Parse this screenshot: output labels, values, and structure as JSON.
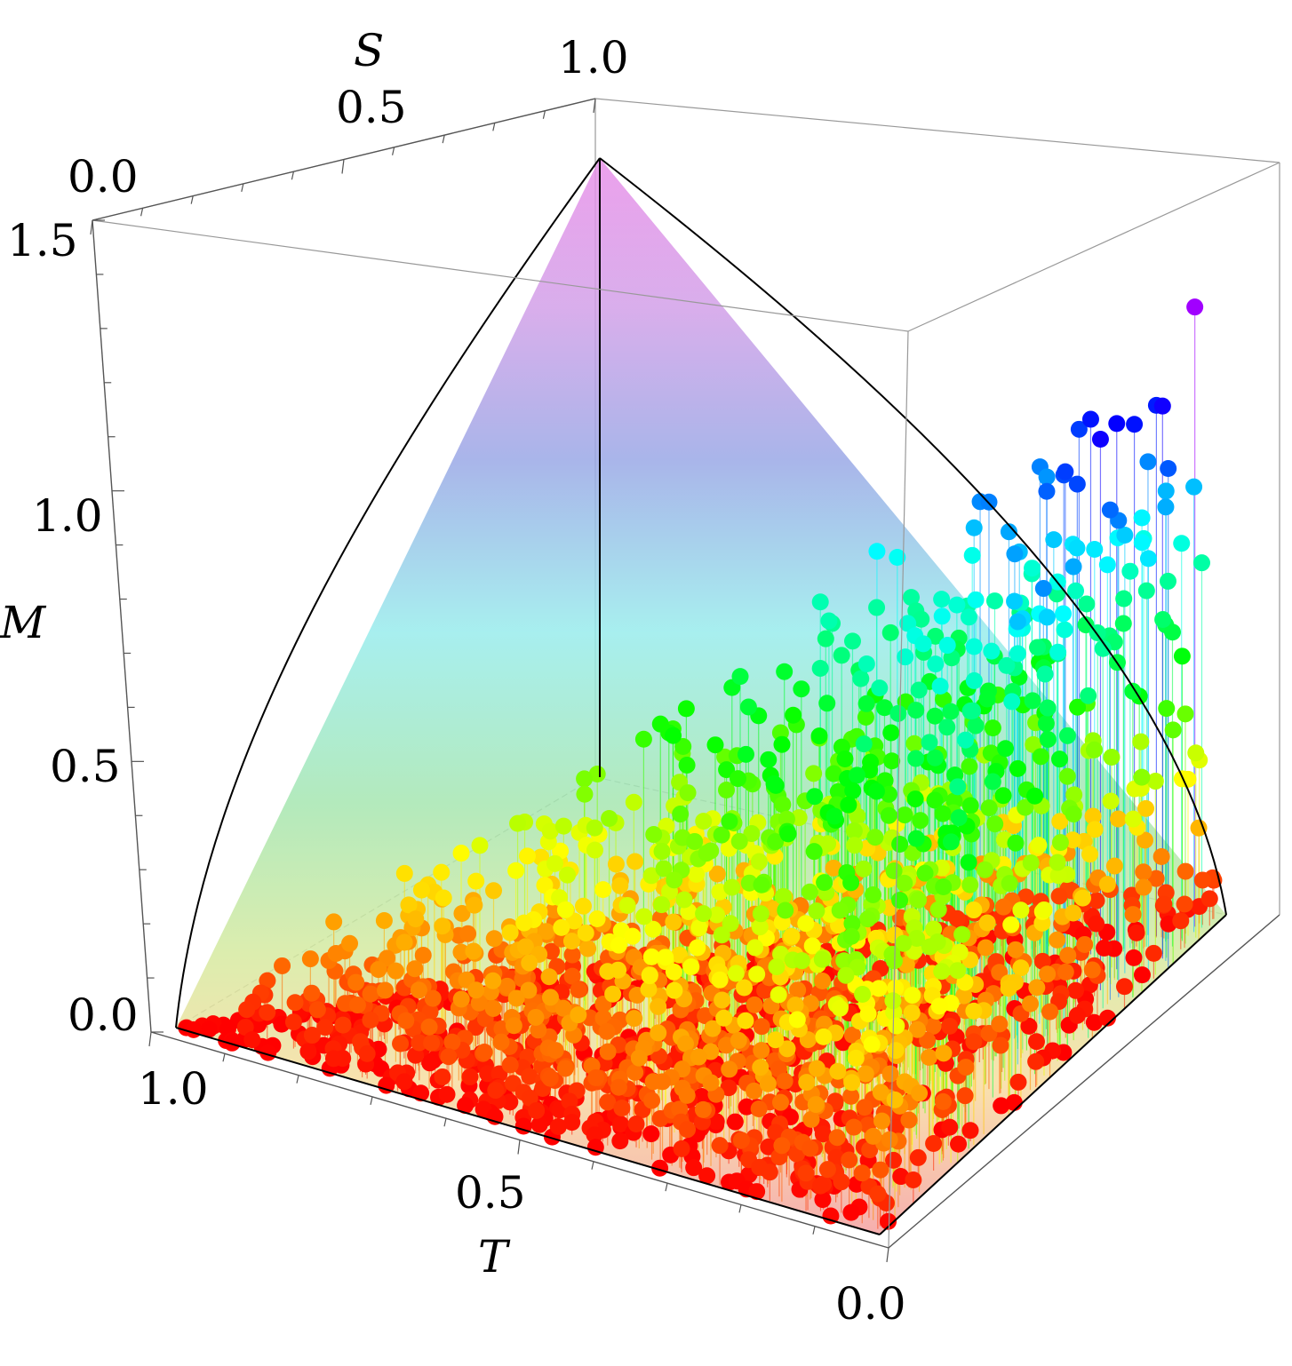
{
  "chart_data": {
    "type": "scatter",
    "subtype": "3d-stem-scatter",
    "title": "",
    "xlabel": "T",
    "ylabel": "S",
    "zlabel": "M",
    "xlim": [
      0,
      1
    ],
    "ylim": [
      0,
      1
    ],
    "zlim": [
      0,
      1.5
    ],
    "x_ticks": [
      "1.0",
      "0.5",
      "0.0"
    ],
    "y_ticks": [
      "0.0",
      "0.5",
      "1.0"
    ],
    "z_ticks": [
      "0.0",
      "0.5",
      "1.0",
      "1.5"
    ],
    "grid": false,
    "legend": "none",
    "surface": "upper bound M over the region T + S ≤ 1, peak M ≈ 1.5 at T = 0, S = 1",
    "colormap": [
      "#ff0000",
      "#ff8800",
      "#ffff00",
      "#00ff00",
      "#00ffff",
      "#0000ff",
      "#ff00ff"
    ],
    "point_count_estimate": 2000,
    "series": [
      {
        "values": [
          [
            0.8,
            0.2,
            0.02
          ],
          [
            0.6,
            0.3,
            0.05
          ],
          [
            0.4,
            0.4,
            0.1
          ],
          [
            0.2,
            0.6,
            0.3
          ],
          [
            0.1,
            0.8,
            0.8
          ],
          [
            0.05,
            0.9,
            1.2
          ],
          [
            0.02,
            0.95,
            1.4
          ],
          [
            0.3,
            0.5,
            0.6
          ],
          [
            0.5,
            0.4,
            0.4
          ],
          [
            0.15,
            0.5,
            0.9
          ],
          [
            0.05,
            0.5,
            1.0
          ],
          [
            0.7,
            0.1,
            0.02
          ]
        ]
      }
    ]
  }
}
